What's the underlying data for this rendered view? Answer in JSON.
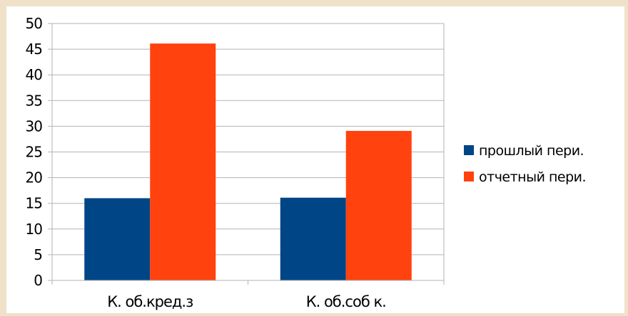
{
  "chart_data": {
    "type": "bar",
    "categories": [
      "К. об.кред.з",
      "К. об.соб к."
    ],
    "series": [
      {
        "name": "прошлый  пери.",
        "values": [
          16,
          16.1
        ]
      },
      {
        "name": "отчетный пери.",
        "values": [
          46.1,
          29.1
        ]
      }
    ],
    "ylim": [
      0,
      50
    ],
    "yticks": [
      "0",
      "5",
      "10",
      "15",
      "20",
      "25",
      "30",
      "35",
      "40",
      "45",
      "50"
    ],
    "grid": true,
    "legend_position": "right",
    "colors": {
      "series": [
        "#004586",
        "#ff420e"
      ],
      "grid": "#b3b3b3",
      "background": "#ffffff",
      "page": "#efe2c8"
    }
  }
}
